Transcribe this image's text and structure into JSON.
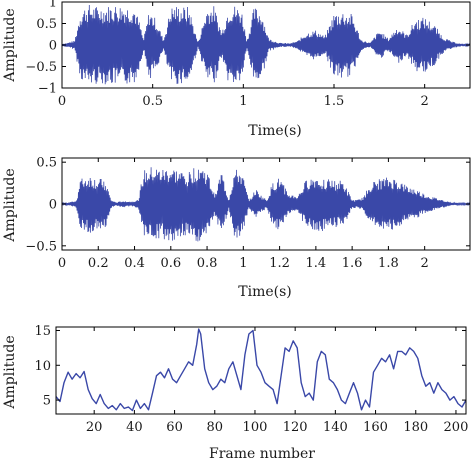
{
  "chart_data": [
    {
      "type": "line",
      "xlabel": "Time(s)",
      "ylabel": "Amplitude",
      "xlim": [
        0,
        2.25
      ],
      "ylim": [
        -1,
        1
      ],
      "xticks": [
        0,
        0.5,
        1,
        1.5,
        2
      ],
      "xtick_labels": [
        "0",
        "0.5",
        "1",
        "1.5",
        "2"
      ],
      "yticks": [
        1,
        0.5,
        0,
        -0.5,
        -1
      ],
      "ytick_labels": [
        "1",
        "0.5",
        "0",
        "−0.5",
        "−1"
      ],
      "grid": false,
      "color": "#3a48a8",
      "envelope": {
        "t": [
          0,
          0.03,
          0.05,
          0.07,
          0.1,
          0.13,
          0.15,
          0.2,
          0.25,
          0.3,
          0.35,
          0.4,
          0.43,
          0.45,
          0.48,
          0.52,
          0.56,
          0.6,
          0.63,
          0.66,
          0.7,
          0.75,
          0.8,
          0.84,
          0.88,
          0.92,
          0.95,
          0.99,
          1.02,
          1.06,
          1.1,
          1.14,
          1.2,
          1.26,
          1.3,
          1.35,
          1.4,
          1.45,
          1.5,
          1.55,
          1.6,
          1.65,
          1.7,
          1.75,
          1.8,
          1.85,
          1.9,
          1.95,
          2.0,
          2.05,
          2.1,
          2.15,
          2.2,
          2.25
        ],
        "amp": [
          0.03,
          0.05,
          0.08,
          0.1,
          0.78,
          0.92,
          0.95,
          0.9,
          0.92,
          0.95,
          0.93,
          0.9,
          0.5,
          0.12,
          0.82,
          0.6,
          0.12,
          0.9,
          0.93,
          0.9,
          0.9,
          0.06,
          0.88,
          0.92,
          0.3,
          0.92,
          0.94,
          0.85,
          0.1,
          0.9,
          0.8,
          0.15,
          0.05,
          0.04,
          0.1,
          0.3,
          0.35,
          0.2,
          0.75,
          0.8,
          0.72,
          0.12,
          0.05,
          0.35,
          0.15,
          0.45,
          0.25,
          0.62,
          0.65,
          0.5,
          0.2,
          0.08,
          0.03,
          0.02
        ]
      }
    },
    {
      "type": "line",
      "xlabel": "Time(s)",
      "ylabel": "Amplitude",
      "xlim": [
        0,
        2.25
      ],
      "ylim": [
        -0.55,
        0.55
      ],
      "xticks": [
        0,
        0.2,
        0.4,
        0.6,
        0.8,
        1,
        1.2,
        1.4,
        1.6,
        1.8,
        2
      ],
      "xtick_labels": [
        "0",
        "0.2",
        "0.4",
        "0.6",
        "0.8",
        "1",
        "1.2",
        "1.4",
        "1.6",
        "1.8",
        "2"
      ],
      "yticks": [
        0.5,
        0,
        -0.5
      ],
      "ytick_labels": [
        "0.5",
        "0",
        "−0.5"
      ],
      "grid": false,
      "color": "#3a48a8",
      "envelope": {
        "t": [
          0,
          0.04,
          0.08,
          0.1,
          0.15,
          0.2,
          0.24,
          0.27,
          0.3,
          0.34,
          0.38,
          0.42,
          0.45,
          0.5,
          0.55,
          0.6,
          0.65,
          0.7,
          0.75,
          0.8,
          0.84,
          0.88,
          0.92,
          0.95,
          0.98,
          1.0,
          1.03,
          1.07,
          1.1,
          1.13,
          1.16,
          1.2,
          1.25,
          1.3,
          1.35,
          1.4,
          1.45,
          1.5,
          1.55,
          1.6,
          1.63,
          1.66,
          1.7,
          1.75,
          1.8,
          1.85,
          1.9,
          1.95,
          2.0,
          2.05,
          2.1,
          2.15,
          2.2,
          2.25
        ],
        "amp": [
          0.01,
          0.02,
          0.05,
          0.3,
          0.35,
          0.3,
          0.3,
          0.05,
          0.02,
          0.04,
          0.03,
          0.05,
          0.4,
          0.45,
          0.42,
          0.45,
          0.4,
          0.38,
          0.5,
          0.4,
          0.12,
          0.4,
          0.05,
          0.4,
          0.42,
          0.32,
          0.05,
          0.18,
          0.1,
          0.05,
          0.25,
          0.32,
          0.12,
          0.1,
          0.3,
          0.34,
          0.32,
          0.28,
          0.28,
          0.05,
          0.05,
          0.08,
          0.25,
          0.3,
          0.32,
          0.3,
          0.22,
          0.18,
          0.12,
          0.08,
          0.05,
          0.02,
          0.01,
          0.01
        ]
      }
    },
    {
      "type": "line",
      "xlabel": "Frame number",
      "ylabel": "Amplitude",
      "xlim": [
        1,
        205
      ],
      "ylim": [
        3,
        15.5
      ],
      "xticks": [
        20,
        40,
        60,
        80,
        100,
        120,
        140,
        160,
        180,
        200
      ],
      "xtick_labels": [
        "20",
        "40",
        "60",
        "80",
        "100",
        "120",
        "140",
        "160",
        "180",
        "200"
      ],
      "yticks": [
        15,
        10,
        5
      ],
      "ytick_labels": [
        "15",
        "10",
        "5"
      ],
      "grid": false,
      "color": "#3a48a8",
      "x": [
        1,
        3,
        5,
        7,
        9,
        11,
        13,
        15,
        17,
        19,
        21,
        23,
        25,
        27,
        29,
        31,
        33,
        35,
        37,
        39,
        41,
        43,
        45,
        47,
        49,
        51,
        53,
        55,
        57,
        59,
        61,
        63,
        65,
        67,
        69,
        71,
        72,
        73,
        75,
        77,
        79,
        81,
        83,
        85,
        87,
        89,
        91,
        93,
        95,
        97,
        99,
        101,
        103,
        105,
        107,
        109,
        111,
        113,
        115,
        117,
        119,
        121,
        123,
        125,
        127,
        129,
        131,
        133,
        135,
        137,
        139,
        141,
        143,
        145,
        147,
        149,
        151,
        153,
        155,
        157,
        159,
        161,
        163,
        165,
        167,
        169,
        171,
        173,
        175,
        177,
        179,
        181,
        183,
        185,
        187,
        189,
        191,
        193,
        195,
        197,
        199,
        201,
        203,
        205
      ],
      "y": [
        5.5,
        4.8,
        7.5,
        9.0,
        8.0,
        8.8,
        8.2,
        9.1,
        6.5,
        5.2,
        4.5,
        5.8,
        4.5,
        3.8,
        4.2,
        3.6,
        4.5,
        3.8,
        4.0,
        3.5,
        5.0,
        3.8,
        4.5,
        3.6,
        6.0,
        8.5,
        9.0,
        8.2,
        9.5,
        8.0,
        7.5,
        8.5,
        9.5,
        10.5,
        10.0,
        13.0,
        15.2,
        14.5,
        9.5,
        7.5,
        6.5,
        7.0,
        8.0,
        7.5,
        9.5,
        10.5,
        8.5,
        6.5,
        11.5,
        14.5,
        15.0,
        10.0,
        9.0,
        7.5,
        7.0,
        6.5,
        4.5,
        8.5,
        12.5,
        12.0,
        13.5,
        12.5,
        7.5,
        5.5,
        6.0,
        5.0,
        10.5,
        12.0,
        11.5,
        8.0,
        7.5,
        6.5,
        5.0,
        4.5,
        6.0,
        7.5,
        6.0,
        3.6,
        5.0,
        4.0,
        9.0,
        10.0,
        11.0,
        10.5,
        11.5,
        9.5,
        12.0,
        12.0,
        11.5,
        12.5,
        12.0,
        11.0,
        8.5,
        7.0,
        7.5,
        6.0,
        7.5,
        6.5,
        6.0,
        5.0,
        5.5,
        4.5,
        4.0,
        5.0
      ]
    }
  ]
}
